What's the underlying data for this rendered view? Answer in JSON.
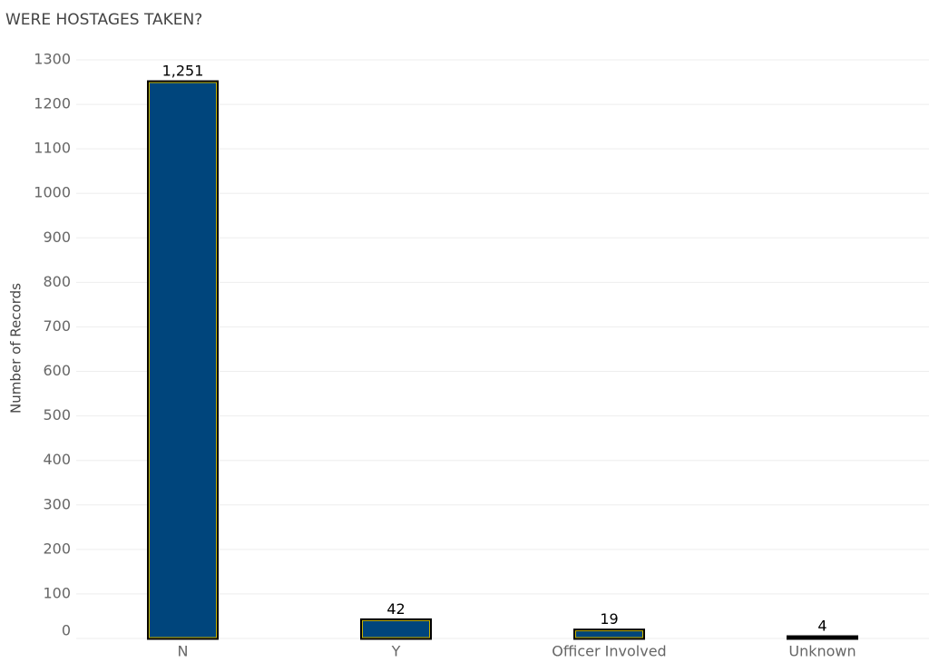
{
  "chart_data": {
    "type": "bar",
    "title": "WERE HOSTAGES TAKEN?",
    "y_label": "Number of Records",
    "categories": [
      "N",
      "Y",
      "Officer Involved",
      "Unknown"
    ],
    "values": [
      1251,
      42,
      19,
      4
    ],
    "value_labels": [
      "1,251",
      "42",
      "19",
      "4"
    ],
    "color": "#00457c",
    "ylim": [
      0,
      1300
    ],
    "yticks": [
      0,
      100,
      200,
      300,
      400,
      500,
      600,
      700,
      800,
      900,
      1000,
      1100,
      1200,
      1300
    ],
    "grid": true
  }
}
